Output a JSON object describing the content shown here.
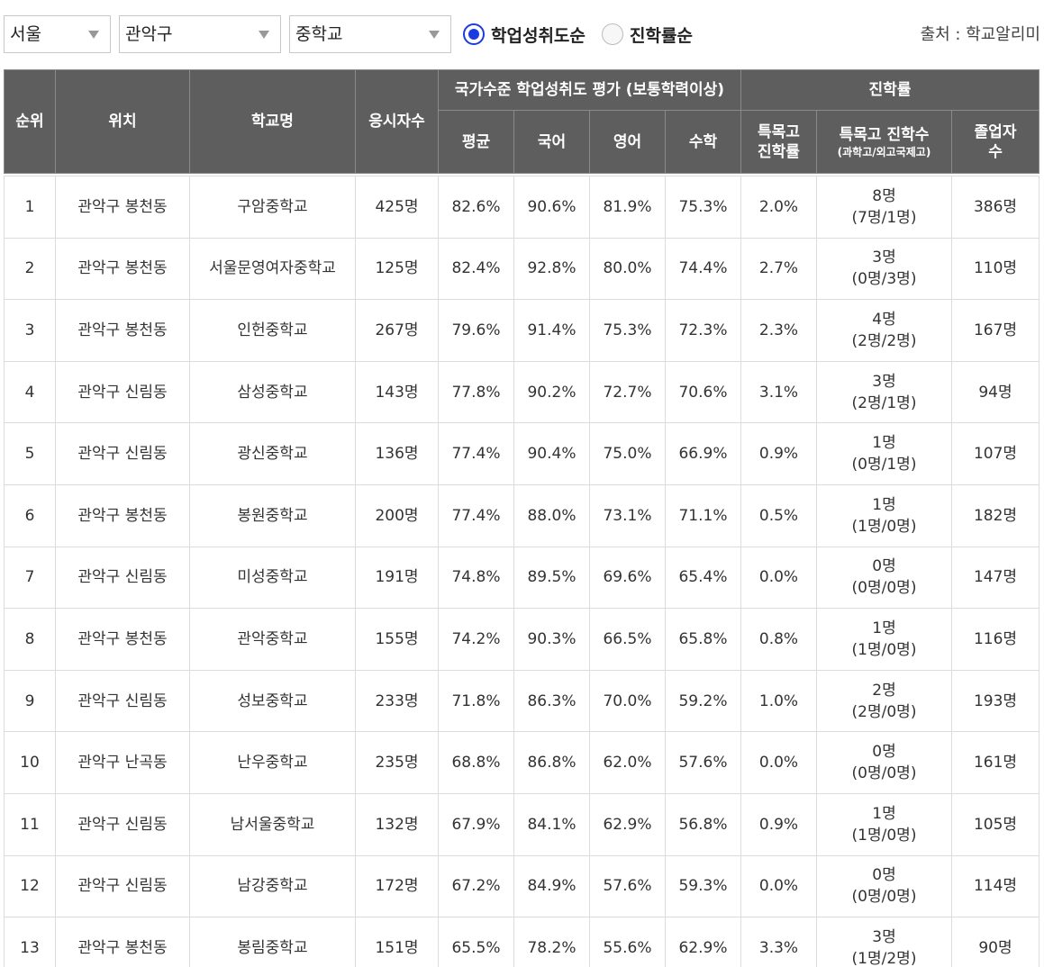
{
  "filters": {
    "city": "서울",
    "district": "관악구",
    "level": "중학교",
    "sort_options": [
      {
        "label": "학업성취도순",
        "selected": true
      },
      {
        "label": "진학률순",
        "selected": false
      }
    ],
    "source": "출처 : 학교알리미"
  },
  "colors": {
    "header_bg": "#5e5e5e",
    "radio_accent": "#1a3be0"
  },
  "table": {
    "headers": {
      "rank": "순위",
      "location": "위치",
      "school": "학교명",
      "examinees": "응시자수",
      "achievement_group": "국가수준 학업성취도 평가 (보통학력이상)",
      "avg": "평균",
      "korean": "국어",
      "english": "영어",
      "math": "수학",
      "advancement_group": "진학률",
      "special_rate_line1": "특목고",
      "special_rate_line2": "진학률",
      "special_count": "특목고 진학수",
      "special_count_sub": "(과학고/외고국제고)",
      "graduates_line1": "졸업자",
      "graduates_line2": "수"
    },
    "rows": [
      {
        "rank": "1",
        "location": "관악구 봉천동",
        "school": "구암중학교",
        "examinees": "425명",
        "avg": "82.6%",
        "korean": "90.6%",
        "english": "81.9%",
        "math": "75.3%",
        "special_rate": "2.0%",
        "special_count": "8명",
        "special_detail": "(7명/1명)",
        "graduates": "386명"
      },
      {
        "rank": "2",
        "location": "관악구 봉천동",
        "school": "서울문영여자중학교",
        "examinees": "125명",
        "avg": "82.4%",
        "korean": "92.8%",
        "english": "80.0%",
        "math": "74.4%",
        "special_rate": "2.7%",
        "special_count": "3명",
        "special_detail": "(0명/3명)",
        "graduates": "110명"
      },
      {
        "rank": "3",
        "location": "관악구 봉천동",
        "school": "인헌중학교",
        "examinees": "267명",
        "avg": "79.6%",
        "korean": "91.4%",
        "english": "75.3%",
        "math": "72.3%",
        "special_rate": "2.3%",
        "special_count": "4명",
        "special_detail": "(2명/2명)",
        "graduates": "167명"
      },
      {
        "rank": "4",
        "location": "관악구 신림동",
        "school": "삼성중학교",
        "examinees": "143명",
        "avg": "77.8%",
        "korean": "90.2%",
        "english": "72.7%",
        "math": "70.6%",
        "special_rate": "3.1%",
        "special_count": "3명",
        "special_detail": "(2명/1명)",
        "graduates": "94명"
      },
      {
        "rank": "5",
        "location": "관악구 신림동",
        "school": "광신중학교",
        "examinees": "136명",
        "avg": "77.4%",
        "korean": "90.4%",
        "english": "75.0%",
        "math": "66.9%",
        "special_rate": "0.9%",
        "special_count": "1명",
        "special_detail": "(0명/1명)",
        "graduates": "107명"
      },
      {
        "rank": "6",
        "location": "관악구 봉천동",
        "school": "봉원중학교",
        "examinees": "200명",
        "avg": "77.4%",
        "korean": "88.0%",
        "english": "73.1%",
        "math": "71.1%",
        "special_rate": "0.5%",
        "special_count": "1명",
        "special_detail": "(1명/0명)",
        "graduates": "182명"
      },
      {
        "rank": "7",
        "location": "관악구 신림동",
        "school": "미성중학교",
        "examinees": "191명",
        "avg": "74.8%",
        "korean": "89.5%",
        "english": "69.6%",
        "math": "65.4%",
        "special_rate": "0.0%",
        "special_count": "0명",
        "special_detail": "(0명/0명)",
        "graduates": "147명"
      },
      {
        "rank": "8",
        "location": "관악구 봉천동",
        "school": "관악중학교",
        "examinees": "155명",
        "avg": "74.2%",
        "korean": "90.3%",
        "english": "66.5%",
        "math": "65.8%",
        "special_rate": "0.8%",
        "special_count": "1명",
        "special_detail": "(1명/0명)",
        "graduates": "116명"
      },
      {
        "rank": "9",
        "location": "관악구 신림동",
        "school": "성보중학교",
        "examinees": "233명",
        "avg": "71.8%",
        "korean": "86.3%",
        "english": "70.0%",
        "math": "59.2%",
        "special_rate": "1.0%",
        "special_count": "2명",
        "special_detail": "(2명/0명)",
        "graduates": "193명"
      },
      {
        "rank": "10",
        "location": "관악구 난곡동",
        "school": "난우중학교",
        "examinees": "235명",
        "avg": "68.8%",
        "korean": "86.8%",
        "english": "62.0%",
        "math": "57.6%",
        "special_rate": "0.0%",
        "special_count": "0명",
        "special_detail": "(0명/0명)",
        "graduates": "161명"
      },
      {
        "rank": "11",
        "location": "관악구 신림동",
        "school": "남서울중학교",
        "examinees": "132명",
        "avg": "67.9%",
        "korean": "84.1%",
        "english": "62.9%",
        "math": "56.8%",
        "special_rate": "0.9%",
        "special_count": "1명",
        "special_detail": "(1명/0명)",
        "graduates": "105명"
      },
      {
        "rank": "12",
        "location": "관악구 신림동",
        "school": "남강중학교",
        "examinees": "172명",
        "avg": "67.2%",
        "korean": "84.9%",
        "english": "57.6%",
        "math": "59.3%",
        "special_rate": "0.0%",
        "special_count": "0명",
        "special_detail": "(0명/0명)",
        "graduates": "114명"
      },
      {
        "rank": "13",
        "location": "관악구 봉천동",
        "school": "봉림중학교",
        "examinees": "151명",
        "avg": "65.5%",
        "korean": "78.2%",
        "english": "55.6%",
        "math": "62.9%",
        "special_rate": "3.3%",
        "special_count": "3명",
        "special_detail": "(1명/2명)",
        "graduates": "90명"
      }
    ]
  }
}
